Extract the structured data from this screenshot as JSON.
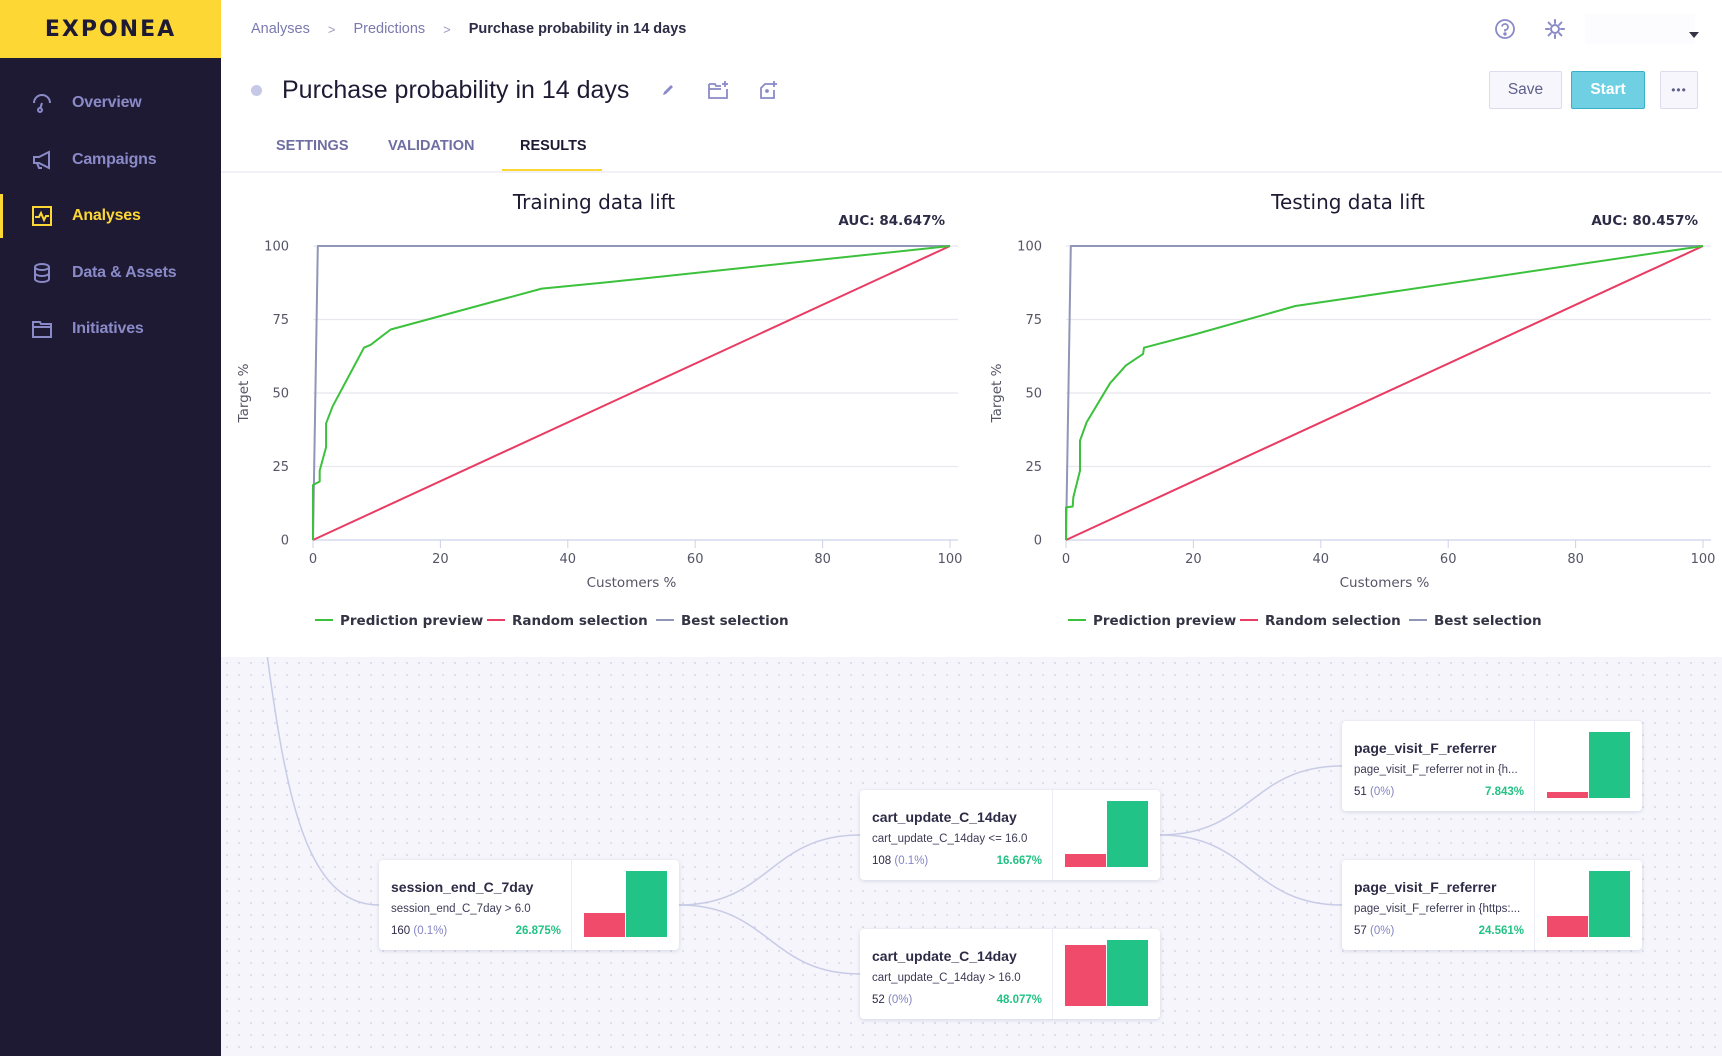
{
  "app": {
    "logo": "EXPONEA",
    "brand_color": "#fdd835",
    "sidebar_color": "#1e1a33"
  },
  "sidebar": {
    "items": [
      {
        "label": "Overview",
        "icon": "gauge-icon",
        "active": false
      },
      {
        "label": "Campaigns",
        "icon": "megaphone-icon",
        "active": false
      },
      {
        "label": "Analyses",
        "icon": "chart-icon",
        "active": true
      },
      {
        "label": "Data & Assets",
        "icon": "database-icon",
        "active": false
      },
      {
        "label": "Initiatives",
        "icon": "folder-icon",
        "active": false
      }
    ]
  },
  "breadcrumb": {
    "items": [
      "Analyses",
      "Predictions"
    ],
    "current": "Purchase probability in 14 days",
    "separator": ">"
  },
  "header": {
    "title": "Purchase probability in 14 days",
    "icons": [
      "help-icon",
      "gear-icon",
      "dropdown-caret-icon"
    ],
    "save_label": "Save",
    "start_label": "Start",
    "more_label": "•••"
  },
  "tabs": [
    {
      "label": "SETTINGS",
      "active": false
    },
    {
      "label": "VALIDATION",
      "active": false
    },
    {
      "label": "RESULTS",
      "active": true
    }
  ],
  "chart_data": [
    {
      "type": "line",
      "title": "Training data lift",
      "annotation": "AUC: 84.647%",
      "xlabel": "Customers %",
      "ylabel": "Target %",
      "xlim": [
        0,
        100
      ],
      "ylim": [
        0,
        100
      ],
      "xticks": [
        0,
        20,
        40,
        60,
        80,
        100
      ],
      "yticks": [
        0,
        25,
        50,
        75,
        100
      ],
      "grid": true,
      "legend_position": "bottom",
      "series": [
        {
          "name": "Prediction preview",
          "color": "#3cc13c",
          "points": [
            [
              0,
              0
            ],
            [
              0,
              18.7
            ],
            [
              1.05,
              19.9
            ],
            [
              1.05,
              23.6
            ],
            [
              2.05,
              31.6
            ],
            [
              2.05,
              39.7
            ],
            [
              3.1,
              45.5
            ],
            [
              8.0,
              65.4
            ],
            [
              9.06,
              66.4
            ],
            [
              12.2,
              71.6
            ],
            [
              35.9,
              85.5
            ],
            [
              45.4,
              87.5
            ],
            [
              100,
              100
            ]
          ]
        },
        {
          "name": "Random selection",
          "color": "#ea3b63",
          "points": [
            [
              0,
              0
            ],
            [
              100,
              100
            ]
          ]
        },
        {
          "name": "Best selection",
          "color": "#8f96b6",
          "points": [
            [
              0,
              0
            ],
            [
              0.75,
              100
            ],
            [
              100,
              100
            ]
          ]
        }
      ]
    },
    {
      "type": "line",
      "title": "Testing data lift",
      "annotation": "AUC: 80.457%",
      "xlabel": "Customers %",
      "ylabel": "Target %",
      "xlim": [
        0,
        100
      ],
      "ylim": [
        0,
        100
      ],
      "xticks": [
        0,
        20,
        40,
        60,
        80,
        100
      ],
      "yticks": [
        0,
        25,
        50,
        75,
        100
      ],
      "grid": true,
      "legend_position": "bottom",
      "series": [
        {
          "name": "Prediction preview",
          "color": "#3cc13c",
          "points": [
            [
              0,
              0
            ],
            [
              0,
              11.1
            ],
            [
              1.05,
              11.4
            ],
            [
              1.15,
              14.5
            ],
            [
              2.2,
              23.6
            ],
            [
              2.2,
              33.8
            ],
            [
              3.25,
              40.1
            ],
            [
              6.9,
              53.3
            ],
            [
              9.4,
              59.4
            ],
            [
              12.1,
              63.3
            ],
            [
              12.25,
              65.4
            ],
            [
              20.5,
              70.1
            ],
            [
              36.0,
              79.6
            ],
            [
              44.6,
              82.3
            ],
            [
              100,
              100
            ]
          ]
        },
        {
          "name": "Random selection",
          "color": "#ea3b63",
          "points": [
            [
              0,
              0
            ],
            [
              100,
              100
            ]
          ]
        },
        {
          "name": "Best selection",
          "color": "#8f96b6",
          "points": [
            [
              0,
              0
            ],
            [
              0.75,
              100
            ],
            [
              100,
              100
            ]
          ]
        }
      ]
    }
  ],
  "tree": {
    "nodes": [
      {
        "id": "session",
        "title": "session_end_C_7day",
        "condition": "session_end_C_7day > 6.0",
        "count": "160",
        "pct": "(0.1%)",
        "rate": "26.875%",
        "bar_neg": 0.36,
        "bar_pos": 1.0
      },
      {
        "id": "cart_le",
        "title": "cart_update_C_14day",
        "condition": "cart_update_C_14day <= 16.0",
        "count": "108",
        "pct": "(0.1%)",
        "rate": "16.667%",
        "bar_neg": 0.19,
        "bar_pos": 1.0
      },
      {
        "id": "cart_gt",
        "title": "cart_update_C_14day",
        "condition": "cart_update_C_14day > 16.0",
        "count": "52",
        "pct": "(0%)",
        "rate": "48.077%",
        "bar_neg": 0.92,
        "bar_pos": 1.0
      },
      {
        "id": "page_notin",
        "title": "page_visit_F_referrer",
        "condition": "page_visit_F_referrer not in {h...",
        "count": "51",
        "pct": "(0%)",
        "rate": "7.843%",
        "bar_neg": 0.085,
        "bar_pos": 1.0
      },
      {
        "id": "page_in",
        "title": "page_visit_F_referrer",
        "condition": "page_visit_F_referrer in {https:...",
        "count": "57",
        "pct": "(0%)",
        "rate": "24.561%",
        "bar_neg": 0.32,
        "bar_pos": 1.0
      }
    ],
    "edges": [
      [
        "root",
        "session"
      ],
      [
        "session",
        "cart_le"
      ],
      [
        "session",
        "cart_gt"
      ],
      [
        "cart_le",
        "page_notin"
      ],
      [
        "cart_le",
        "page_in"
      ]
    ]
  }
}
